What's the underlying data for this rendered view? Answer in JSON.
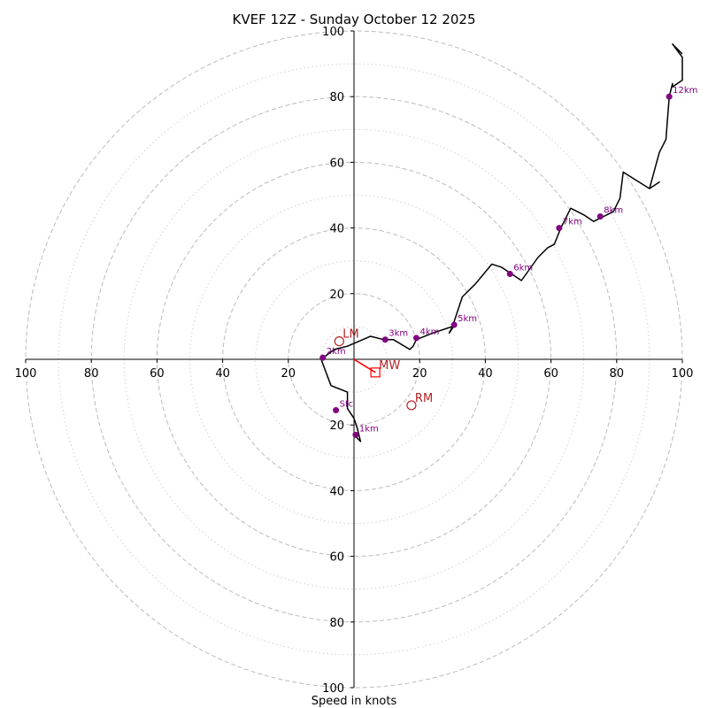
{
  "chart_data": {
    "type": "hodograph",
    "title": "KVEF 12Z - Sunday October 12 2025",
    "xlabel": "Speed in knots",
    "units": "knots",
    "range": [
      -100,
      100
    ],
    "ring_major": [
      20,
      40,
      60,
      80,
      100
    ],
    "ring_minor": [
      10,
      30,
      50,
      70,
      90
    ],
    "x_ticks": [
      "100",
      "80",
      "60",
      "40",
      "20",
      "20",
      "40",
      "60",
      "80",
      "100"
    ],
    "x_tick_values": [
      -100,
      -80,
      -60,
      -40,
      -20,
      20,
      40,
      60,
      80,
      100
    ],
    "y_ticks": [
      "100",
      "80",
      "60",
      "40",
      "20",
      "20",
      "40",
      "60",
      "80",
      "100"
    ],
    "y_tick_values": [
      100,
      80,
      60,
      40,
      20,
      -20,
      -40,
      -60,
      -80,
      -100
    ],
    "colors": {
      "trace": "#000000",
      "height_marker": "#800080",
      "motion": "#b22222",
      "mean_wind": "#ff0000",
      "grid": "#bbbbbb"
    },
    "trace": [
      [
        0,
        -23
      ],
      [
        2,
        -25
      ],
      [
        1,
        -21
      ],
      [
        0,
        -18
      ],
      [
        -2,
        -15
      ],
      [
        -2,
        -10
      ],
      [
        -7,
        -8
      ],
      [
        -10,
        0
      ],
      [
        -6,
        3
      ],
      [
        -2,
        4
      ],
      [
        5,
        7
      ],
      [
        9,
        6
      ],
      [
        12,
        6
      ],
      [
        17,
        3
      ],
      [
        18,
        4
      ],
      [
        19,
        6
      ],
      [
        24,
        8
      ],
      [
        30,
        10
      ],
      [
        31,
        11
      ],
      [
        29,
        8
      ],
      [
        30,
        10
      ],
      [
        33,
        19
      ],
      [
        37,
        23
      ],
      [
        42,
        29
      ],
      [
        45,
        28
      ],
      [
        48,
        26
      ],
      [
        51,
        24
      ],
      [
        56,
        31
      ],
      [
        59,
        34
      ],
      [
        61,
        35
      ],
      [
        63,
        40
      ],
      [
        66,
        46
      ],
      [
        70,
        44
      ],
      [
        73,
        42
      ],
      [
        75,
        43
      ],
      [
        79,
        45
      ],
      [
        81,
        49
      ],
      [
        82,
        57
      ],
      [
        90,
        52
      ],
      [
        93,
        54
      ],
      [
        90,
        52
      ],
      [
        93,
        63
      ],
      [
        95,
        67
      ],
      [
        96,
        80
      ],
      [
        97,
        84
      ],
      [
        97,
        83
      ],
      [
        100,
        85
      ],
      [
        100,
        92
      ],
      [
        97,
        96
      ],
      [
        97,
        96
      ],
      [
        100,
        93
      ]
    ],
    "height_markers": [
      {
        "label": "Sfc",
        "u": -5.5,
        "v": -15.5
      },
      {
        "label": "1km",
        "u": 0.5,
        "v": -23
      },
      {
        "label": "2km",
        "u": -9.5,
        "v": 0.5
      },
      {
        "label": "3km",
        "u": 9.5,
        "v": 6
      },
      {
        "label": "4km",
        "u": 19,
        "v": 6.5
      },
      {
        "label": "5km",
        "u": 30.5,
        "v": 10.5
      },
      {
        "label": "6km",
        "u": 47.5,
        "v": 26
      },
      {
        "label": "7km",
        "u": 62.5,
        "v": 40
      },
      {
        "label": "8km",
        "u": 75,
        "v": 43.5
      },
      {
        "label": "12km",
        "u": 96,
        "v": 80
      }
    ],
    "storm_motion": [
      {
        "label": "LM",
        "u": -4.5,
        "v": 5.5,
        "marker": "circle"
      },
      {
        "label": "RM",
        "u": 17.5,
        "v": -14,
        "marker": "circle"
      },
      {
        "label": "MW",
        "u": 6.5,
        "v": -4,
        "marker": "square"
      }
    ],
    "mean_wind_vector": {
      "u": 6.5,
      "v": -4
    }
  }
}
